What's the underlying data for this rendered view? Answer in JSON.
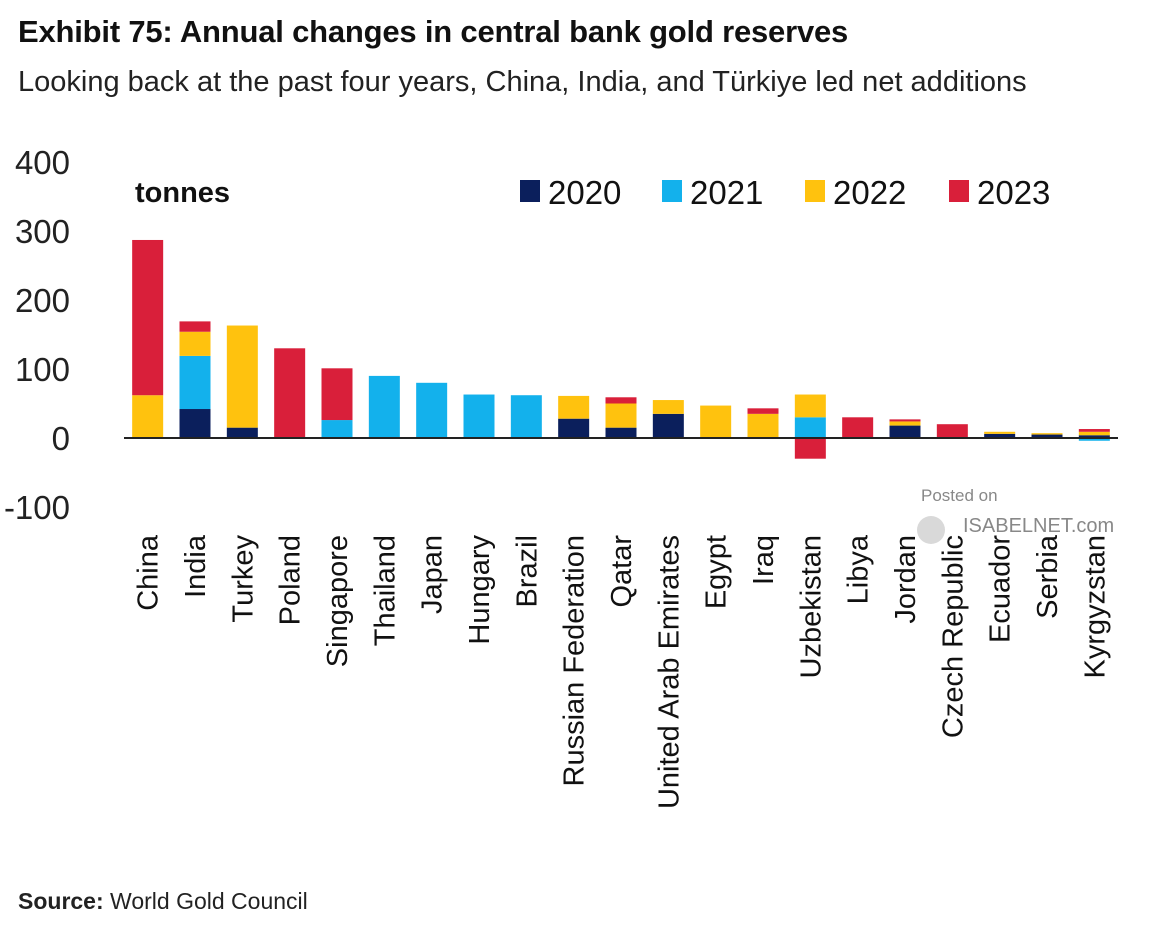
{
  "title": "Exhibit 75: Annual changes in central bank gold reserves",
  "subtitle": "Looking back at the past four years, China, India, and Türkiye led net additions",
  "source": {
    "label": "Source:",
    "text": "World Gold Council"
  },
  "watermark": {
    "line1": "Posted on",
    "line2": "ISABELNET.com"
  },
  "chart_data": {
    "type": "bar",
    "stacked": true,
    "unit_label": "tonnes",
    "ylim": [
      -100,
      400
    ],
    "yticks": [
      400,
      300,
      200,
      100,
      0,
      -100
    ],
    "grid": false,
    "legend_position": "top-right",
    "categories": [
      "China",
      "India",
      "Turkey",
      "Poland",
      "Singapore",
      "Thailand",
      "Japan",
      "Hungary",
      "Brazil",
      "Russian Federation",
      "Qatar",
      "United Arab Emirates",
      "Egypt",
      "Iraq",
      "Uzbekistan",
      "Libya",
      "Jordan",
      "Czech Republic",
      "Ecuador",
      "Serbia",
      "Kyrgyzstan"
    ],
    "series": [
      {
        "name": "2020",
        "color": "#0b1f5c",
        "values": [
          0,
          42,
          15,
          0,
          0,
          0,
          0,
          0,
          0,
          28,
          15,
          35,
          0,
          0,
          0,
          0,
          18,
          0,
          6,
          5,
          4
        ]
      },
      {
        "name": "2021",
        "color": "#13b1ec",
        "values": [
          0,
          77,
          0,
          0,
          26,
          90,
          80,
          63,
          62,
          0,
          0,
          0,
          0,
          0,
          30,
          0,
          0,
          0,
          0,
          0,
          -4
        ]
      },
      {
        "name": "2022",
        "color": "#ffc20e",
        "values": [
          62,
          35,
          148,
          0,
          0,
          0,
          0,
          0,
          0,
          33,
          35,
          20,
          47,
          35,
          33,
          0,
          6,
          0,
          3,
          2,
          5
        ]
      },
      {
        "name": "2023",
        "color": "#d91f3a",
        "values": [
          225,
          15,
          0,
          130,
          75,
          0,
          0,
          0,
          0,
          0,
          9,
          0,
          0,
          8,
          -30,
          30,
          3,
          20,
          0,
          0,
          4
        ]
      }
    ]
  }
}
